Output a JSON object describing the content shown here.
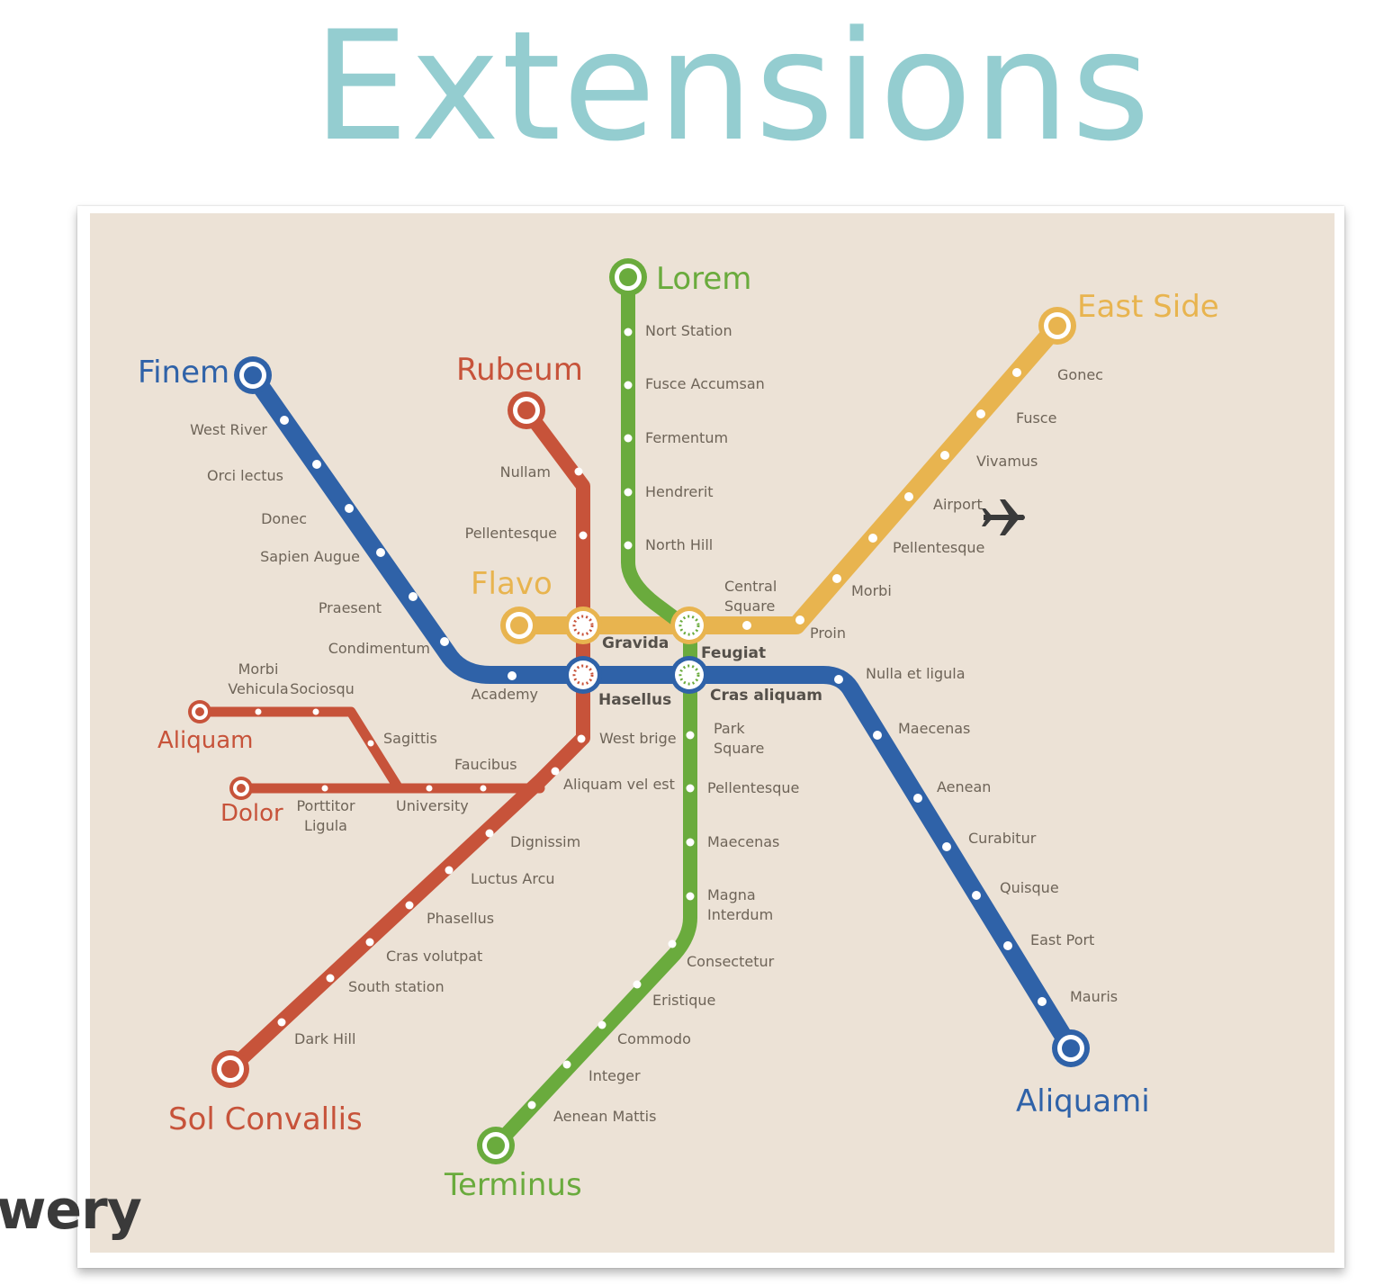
{
  "title": "Extensions",
  "brand_fragment": "wery",
  "colors": {
    "blue": "#2f62a8",
    "red": "#c7533a",
    "green": "#6aab3d",
    "yellow": "#e8b44f",
    "map_bg": "#ece2d6",
    "title": "#94cdd0"
  },
  "icons": {
    "airport": "airplane-icon"
  },
  "terminals": {
    "finem": "Finem",
    "rubeum": "Rubeum",
    "lorem": "Lorem",
    "east_side": "East Side",
    "flavo": "Flavo",
    "aliquam": "Aliquam",
    "dolor": "Dolor",
    "sol_convallis": "Sol Convallis",
    "terminus": "Terminus",
    "aliquami": "Aliquami"
  },
  "transfers": {
    "gravida": "Gravida",
    "feugiat": "Feugiat",
    "hasellus": "Hasellus",
    "cras_aliquam": "Cras aliquam"
  },
  "stations": {
    "blue_nw": [
      "West River",
      "Orci lectus",
      "Donec",
      "Sapien Augue",
      "Praesent",
      "Condimentum",
      "Academy"
    ],
    "blue_se": [
      "Nulla et ligula",
      "Maecenas",
      "Aenean",
      "Curabitur",
      "Quisque",
      "East Port",
      "Mauris"
    ],
    "red_top": [
      "Nullam",
      "Pellentesque"
    ],
    "red_south": [
      "West brige",
      "Aliquam vel est",
      "Dignissim",
      "Luctus Arcu",
      "Phasellus",
      "Cras volutpat",
      "South station",
      "Dark Hill"
    ],
    "red_branches": {
      "morbi_vehicula": [
        "Morbi",
        "Vehicula"
      ],
      "sociosqu": "Sociosqu",
      "sagittis": "Sagittis",
      "faucibus": "Faucibus",
      "university": "University",
      "porttitor_ligula": [
        "Porttitor",
        "Ligula"
      ]
    },
    "green_north": [
      "Nort Station",
      "Fusce Accumsan",
      "Fermentum",
      "Hendrerit",
      "North Hill"
    ],
    "green_south": {
      "park_square": [
        "Park",
        "Square"
      ],
      "pellentesque": "Pellentesque",
      "maecenas": "Maecenas",
      "magna_interdum": [
        "Magna",
        "Interdum"
      ],
      "rest": [
        "Consectetur",
        "Eristique",
        "Commodo",
        "Integer",
        "Aenean Mattis"
      ]
    },
    "yellow_east": {
      "central_square": [
        "Central",
        "Square"
      ],
      "rest": [
        "Proin",
        "Morbi",
        "Pellentesque",
        "Airport",
        "Vivamus",
        "Fusce",
        "Gonec"
      ]
    }
  }
}
